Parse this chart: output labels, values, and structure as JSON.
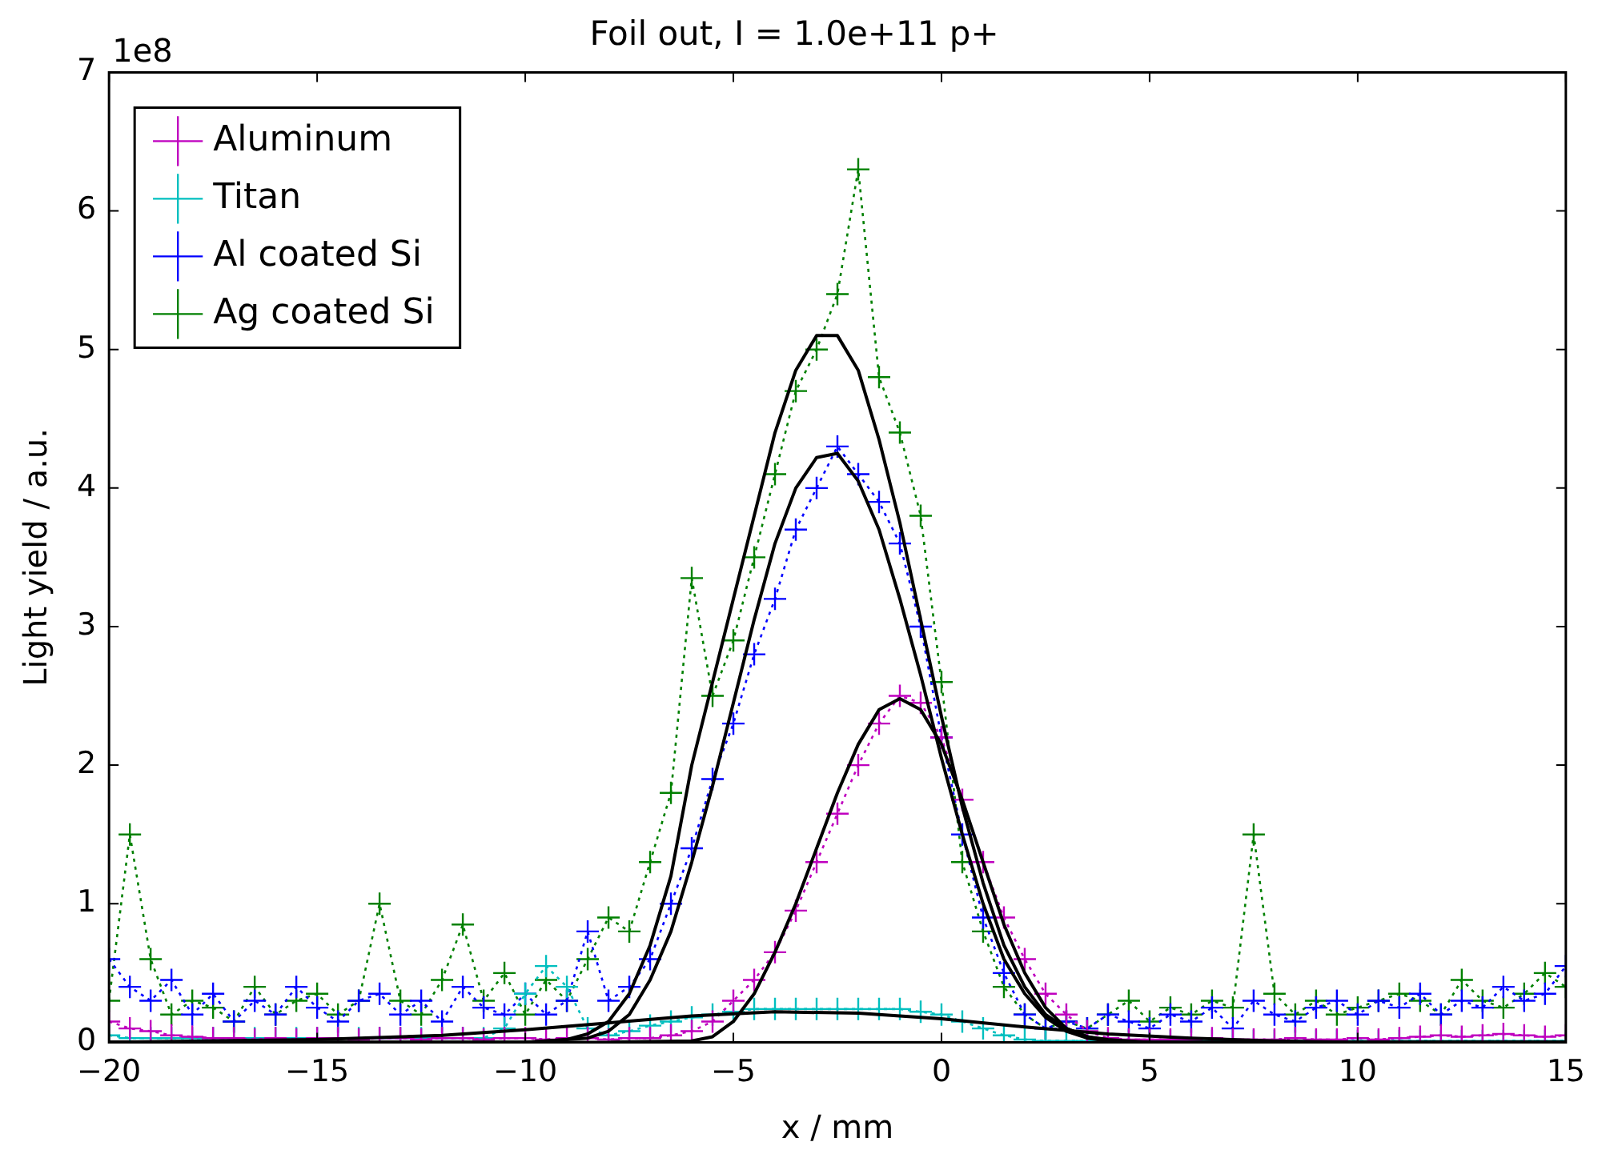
{
  "chart_data": {
    "type": "line",
    "title": "Foil out, I = 1.0e+11 p+",
    "xlabel": "x / mm",
    "ylabel": "Light yield / a.u.",
    "annotations": [
      "1e8"
    ],
    "x": [
      -20,
      -19.5,
      -19,
      -18.5,
      -18,
      -17.5,
      -17,
      -16.5,
      -16,
      -15.5,
      -15,
      -14.5,
      -14,
      -13.5,
      -13,
      -12.5,
      -12,
      -11.5,
      -11,
      -10.5,
      -10,
      -9.5,
      -9,
      -8.5,
      -8,
      -7.5,
      -7,
      -6.5,
      -6,
      -5.5,
      -5,
      -4.5,
      -4,
      -3.5,
      -3,
      -2.5,
      -2,
      -1.5,
      -1,
      -0.5,
      0,
      0.5,
      1,
      1.5,
      2,
      2.5,
      3,
      3.5,
      4,
      4.5,
      5,
      5.5,
      6,
      6.5,
      7,
      7.5,
      8,
      8.5,
      9,
      9.5,
      10,
      10.5,
      11,
      11.5,
      12,
      12.5,
      13,
      13.5,
      14,
      14.5,
      15
    ],
    "xlim": [
      -20,
      15
    ],
    "xticks": [
      -20,
      -15,
      -10,
      -5,
      0,
      5,
      10,
      15
    ],
    "ylim": [
      0,
      7
    ],
    "yticks": [
      0,
      1,
      2,
      3,
      4,
      5,
      6,
      7
    ],
    "grid": false,
    "legend": "top left",
    "marker": "cross",
    "line_style": "dotted",
    "series": [
      {
        "name": "Aluminum",
        "color": "#bf00bf",
        "values": [
          0.15,
          0.1,
          0.08,
          0.05,
          0.04,
          0.03,
          0.03,
          0.02,
          0.03,
          0.02,
          0.03,
          0.03,
          0.02,
          0.03,
          0.03,
          0.02,
          0.03,
          0.03,
          0.02,
          0.03,
          0.03,
          0.02,
          0.03,
          0.03,
          0.02,
          0.03,
          0.03,
          0.05,
          0.08,
          0.15,
          0.3,
          0.45,
          0.65,
          0.95,
          1.3,
          1.65,
          2.0,
          2.3,
          2.5,
          2.45,
          2.2,
          1.75,
          1.3,
          0.9,
          0.6,
          0.35,
          0.2,
          0.08,
          0.03,
          0.02,
          0.02,
          0.02,
          0.02,
          0.03,
          0.02,
          0.02,
          0.02,
          0.03,
          0.02,
          0.02,
          0.03,
          0.02,
          0.03,
          0.04,
          0.05,
          0.04,
          0.05,
          0.06,
          0.05,
          0.04,
          0.05
        ]
      },
      {
        "name": "Titan",
        "color": "#00bfbf",
        "values": [
          0.05,
          0.03,
          0.03,
          0.03,
          0.03,
          0.03,
          0.03,
          0.03,
          0.03,
          0.03,
          0.03,
          0.03,
          0.03,
          0.03,
          0.03,
          0.03,
          0.03,
          0.03,
          0.03,
          0.1,
          0.35,
          0.55,
          0.4,
          0.1,
          0.05,
          0.08,
          0.12,
          0.15,
          0.18,
          0.2,
          0.22,
          0.24,
          0.24,
          0.24,
          0.24,
          0.24,
          0.24,
          0.24,
          0.24,
          0.22,
          0.2,
          0.15,
          0.1,
          0.05,
          0.02,
          0.01,
          0.01,
          0.01,
          0.01,
          0.01,
          0.01,
          0.01,
          0.01,
          0.01,
          0.01,
          0.01,
          0.01,
          0.01,
          0.01,
          0.01,
          0.01,
          0.01,
          0.01,
          0.01,
          0.01,
          0.01,
          0.01,
          0.01,
          0.01,
          0.01,
          0.01
        ]
      },
      {
        "name": "Al coated Si",
        "color": "#0000ff",
        "values": [
          0.6,
          0.4,
          0.3,
          0.45,
          0.2,
          0.35,
          0.15,
          0.3,
          0.2,
          0.4,
          0.25,
          0.15,
          0.3,
          0.35,
          0.2,
          0.3,
          0.15,
          0.4,
          0.25,
          0.2,
          0.35,
          0.2,
          0.3,
          0.8,
          0.3,
          0.4,
          0.6,
          1.0,
          1.4,
          1.9,
          2.3,
          2.8,
          3.2,
          3.7,
          4.0,
          4.3,
          4.1,
          3.9,
          3.6,
          3.0,
          2.2,
          1.5,
          0.9,
          0.5,
          0.2,
          0.1,
          0.15,
          0.1,
          0.2,
          0.15,
          0.1,
          0.2,
          0.15,
          0.25,
          0.1,
          0.3,
          0.2,
          0.15,
          0.25,
          0.3,
          0.2,
          0.3,
          0.25,
          0.35,
          0.2,
          0.3,
          0.25,
          0.4,
          0.3,
          0.35,
          0.55
        ]
      },
      {
        "name": "Ag coated Si",
        "color": "#008000",
        "values": [
          0.3,
          1.5,
          0.6,
          0.2,
          0.3,
          0.25,
          0.15,
          0.4,
          0.2,
          0.3,
          0.35,
          0.2,
          0.3,
          1.0,
          0.3,
          0.2,
          0.45,
          0.85,
          0.3,
          0.5,
          0.2,
          0.45,
          0.3,
          0.6,
          0.9,
          0.8,
          1.3,
          1.8,
          3.35,
          2.5,
          2.9,
          3.5,
          4.1,
          4.7,
          5.0,
          5.4,
          6.3,
          4.8,
          4.4,
          3.8,
          2.6,
          1.3,
          0.8,
          0.4,
          0.2,
          0.1,
          0.15,
          0.1,
          0.2,
          0.3,
          0.15,
          0.25,
          0.2,
          0.3,
          0.25,
          1.5,
          0.35,
          0.2,
          0.3,
          0.2,
          0.25,
          0.3,
          0.35,
          0.3,
          0.2,
          0.45,
          0.3,
          0.25,
          0.35,
          0.5,
          0.4
        ]
      },
      {
        "type": "line",
        "color": "#000000",
        "marker": "none",
        "line_style": "solid",
        "x": [
          -20,
          -15,
          -12,
          -10,
          -8,
          -6,
          -4,
          -2,
          0,
          2,
          4,
          6,
          8,
          10,
          15
        ],
        "values": [
          0,
          0.02,
          0.05,
          0.09,
          0.14,
          0.19,
          0.22,
          0.21,
          0.17,
          0.11,
          0.06,
          0.03,
          0.01,
          0,
          0
        ]
      },
      {
        "type": "line",
        "color": "#000000",
        "marker": "none",
        "line_style": "solid",
        "x": [
          -20,
          -8,
          -6,
          -5.5,
          -5,
          -4.5,
          -4,
          -3.5,
          -3,
          -2.5,
          -2,
          -1.5,
          -1,
          -0.5,
          0,
          0.5,
          1,
          1.5,
          2,
          2.5,
          3,
          3.5,
          4,
          5,
          15
        ],
        "values": [
          0,
          0,
          0.01,
          0.04,
          0.15,
          0.35,
          0.65,
          1.0,
          1.4,
          1.8,
          2.15,
          2.4,
          2.48,
          2.4,
          2.15,
          1.75,
          1.3,
          0.85,
          0.5,
          0.25,
          0.1,
          0.04,
          0.01,
          0,
          0
        ]
      },
      {
        "type": "line",
        "color": "#000000",
        "marker": "none",
        "line_style": "solid",
        "x": [
          -20,
          -10,
          -8.5,
          -8,
          -7.5,
          -7,
          -6.5,
          -6,
          -5.5,
          -5,
          -4.5,
          -4,
          -3.5,
          -3,
          -2.5,
          -2,
          -1.5,
          -1,
          -0.5,
          0,
          0.5,
          1,
          1.5,
          2,
          2.5,
          3,
          3.5,
          4,
          5,
          15
        ],
        "values": [
          0,
          0,
          0.03,
          0.08,
          0.2,
          0.45,
          0.8,
          1.3,
          1.85,
          2.45,
          3.05,
          3.6,
          4.0,
          4.22,
          4.25,
          4.05,
          3.7,
          3.2,
          2.65,
          2.05,
          1.5,
          1.0,
          0.6,
          0.35,
          0.18,
          0.08,
          0.03,
          0.01,
          0,
          0
        ]
      },
      {
        "type": "line",
        "color": "#000000",
        "marker": "none",
        "line_style": "solid",
        "x": [
          -20,
          -10,
          -9,
          -8.5,
          -8,
          -7.5,
          -7,
          -6.5,
          -6,
          -5.5,
          -5,
          -4.5,
          -4,
          -3.5,
          -3,
          -2.5,
          -2,
          -1.5,
          -1,
          -0.5,
          0,
          0.5,
          1,
          1.5,
          2,
          2.5,
          3,
          3.5,
          4,
          5,
          15
        ],
        "values": [
          0,
          0,
          0.02,
          0.06,
          0.15,
          0.35,
          0.7,
          1.2,
          2.0,
          2.6,
          3.2,
          3.8,
          4.4,
          4.85,
          5.1,
          5.1,
          4.85,
          4.35,
          3.75,
          3.05,
          2.35,
          1.7,
          1.15,
          0.7,
          0.4,
          0.2,
          0.1,
          0.04,
          0.02,
          0,
          0
        ]
      }
    ]
  }
}
